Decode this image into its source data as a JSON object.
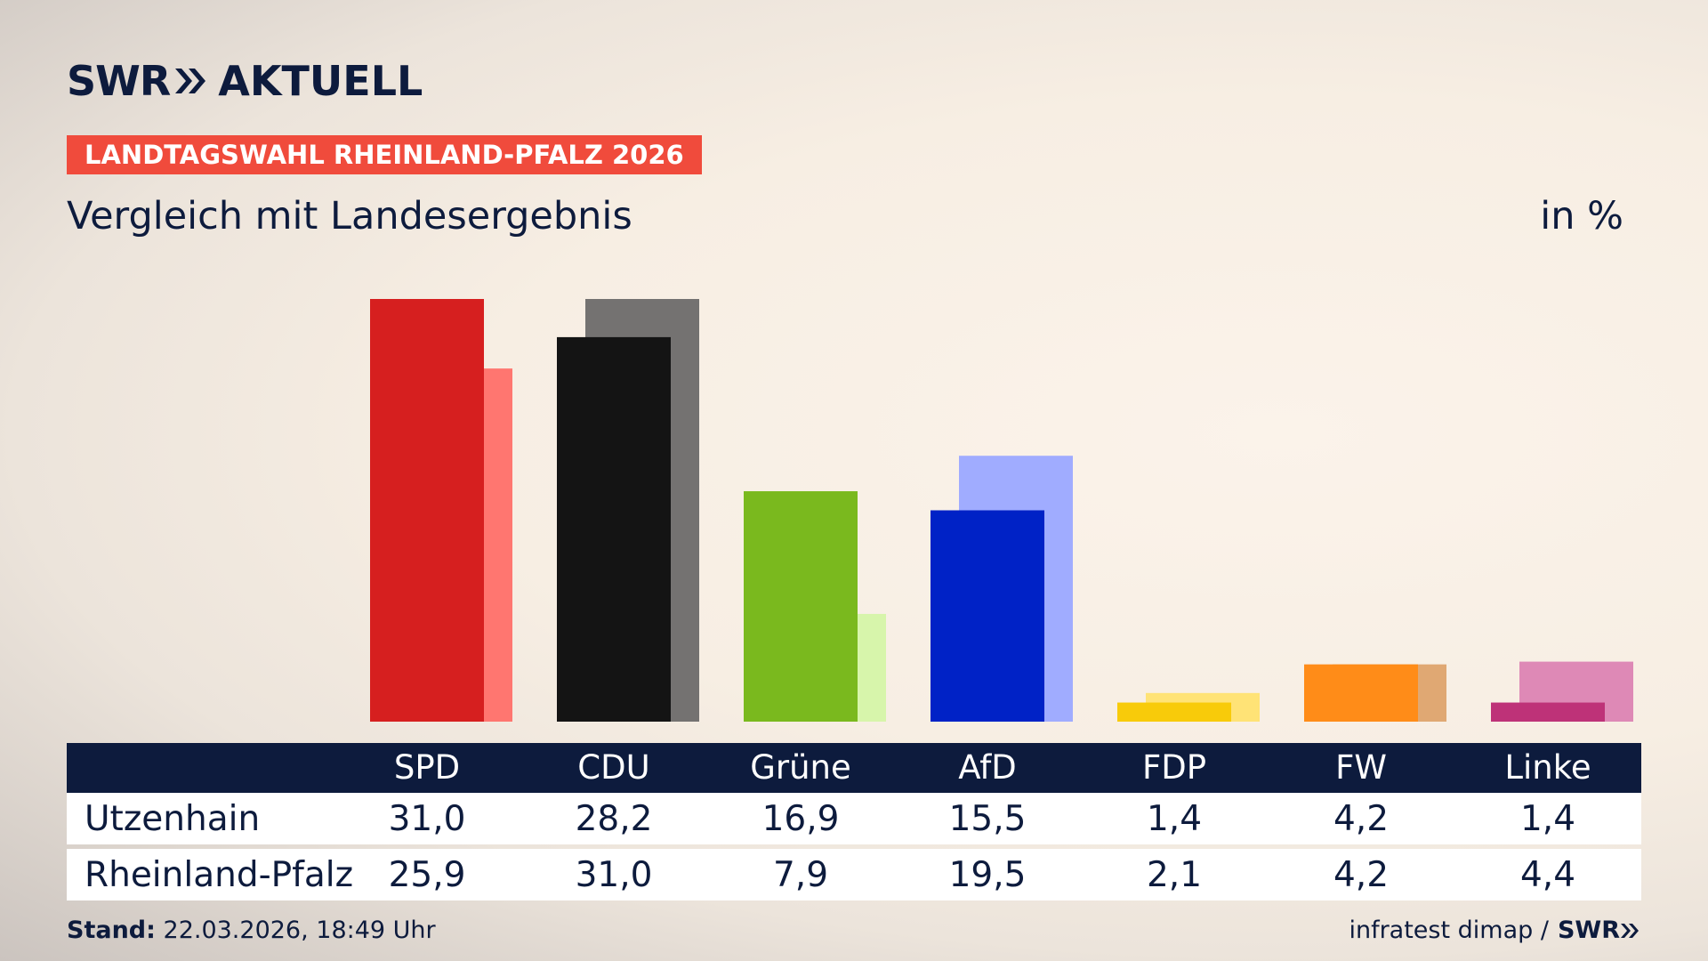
{
  "header": {
    "brand": "SWR",
    "brand_suffix": "AKTUELL",
    "kicker": "LANDTAGSWAHL RHEINLAND-PFALZ 2026",
    "subtitle": "Vergleich mit Landesergebnis",
    "unit": "in %"
  },
  "colors": {
    "navy": "#0d1b3d",
    "kicker_bg": "#f04b3c"
  },
  "chart_data": {
    "type": "bar",
    "categories": [
      "SPD",
      "CDU",
      "Grüne",
      "AfD",
      "FDP",
      "FW",
      "Linke"
    ],
    "series": [
      {
        "name": "Utzenhain",
        "values": [
          31.0,
          28.2,
          16.9,
          15.5,
          1.4,
          4.2,
          1.4
        ],
        "colors": [
          "#d61f1f",
          "#141414",
          "#7ab91e",
          "#0022c6",
          "#f8cb0a",
          "#ff8c18",
          "#be3278"
        ]
      },
      {
        "name": "Rheinland-Pfalz",
        "values": [
          25.9,
          31.0,
          7.9,
          19.5,
          2.1,
          4.2,
          4.4
        ],
        "colors": [
          "#ff7670",
          "#747271",
          "#d7f5ab",
          "#a0acff",
          "#ffe376",
          "#e0a873",
          "#de89b6"
        ]
      }
    ],
    "ylim": [
      0,
      31.0
    ],
    "grid": false,
    "legend": "none"
  },
  "table": {
    "headers": [
      "SPD",
      "CDU",
      "Grüne",
      "AfD",
      "FDP",
      "FW",
      "Linke"
    ],
    "rows": [
      {
        "label": "Utzenhain",
        "values": [
          "31,0",
          "28,2",
          "16,9",
          "15,5",
          "1,4",
          "4,2",
          "1,4"
        ]
      },
      {
        "label": "Rheinland-Pfalz",
        "values": [
          "25,9",
          "31,0",
          "7,9",
          "19,5",
          "2,1",
          "4,2",
          "4,4"
        ]
      }
    ]
  },
  "footer": {
    "stand_label": "Stand:",
    "stand_value": "22.03.2026, 18:49 Uhr",
    "source": "infratest dimap /",
    "source_brand": "SWR"
  }
}
